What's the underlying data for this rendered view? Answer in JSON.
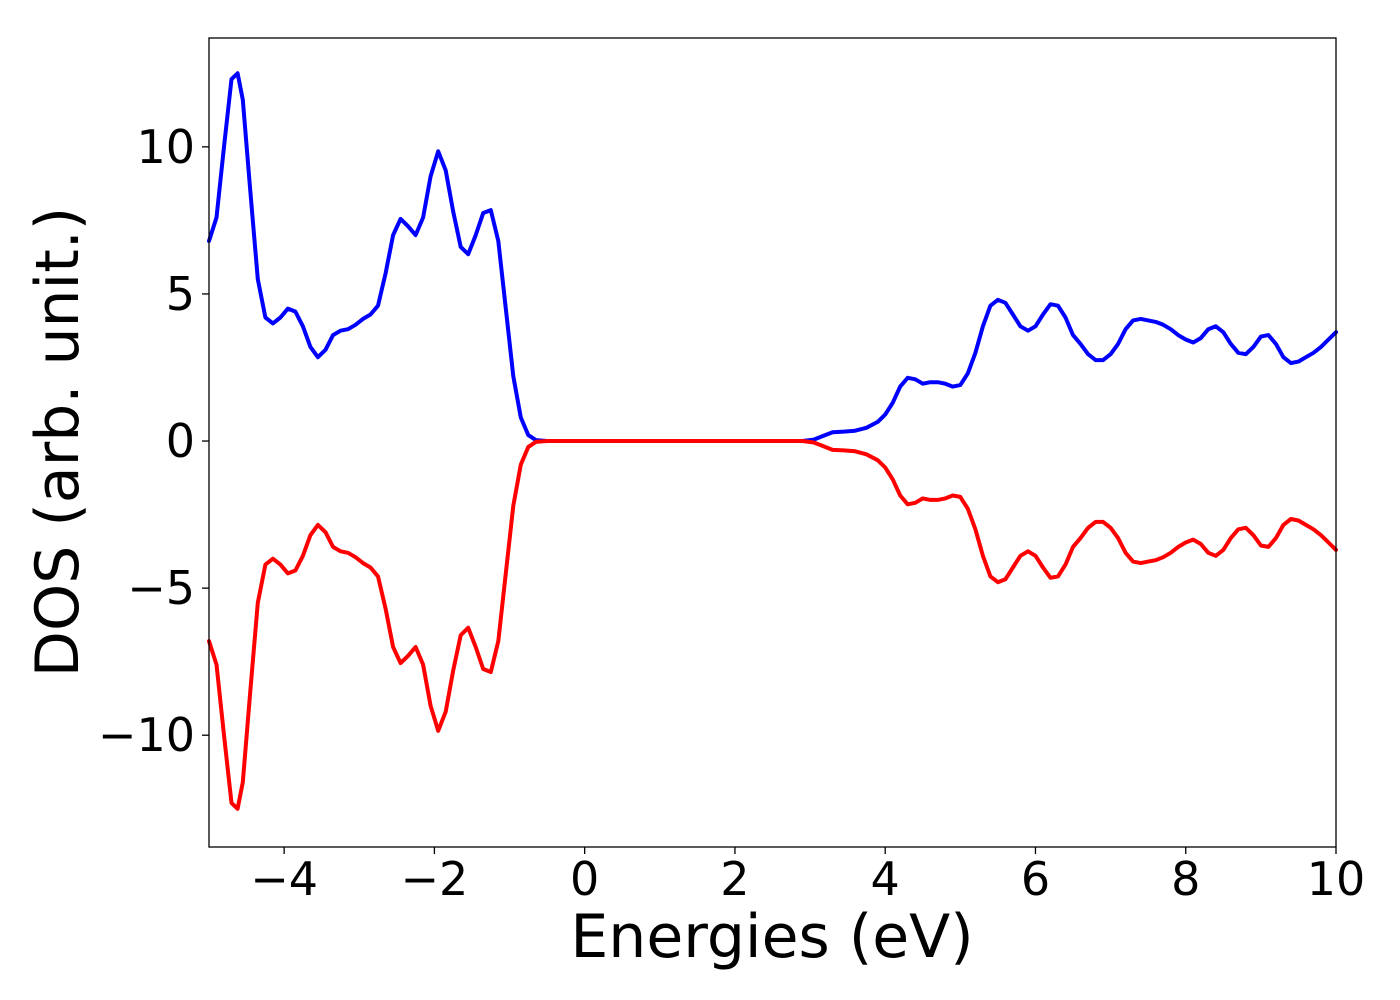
{
  "chart_data": {
    "type": "line",
    "title": "",
    "xlabel": "Energies (eV)",
    "ylabel": "DOS (arb. unit.)",
    "xlim": [
      -5,
      10
    ],
    "ylim": [
      -13.8,
      13.7
    ],
    "grid": false,
    "x_ticks": [
      -4,
      -2,
      0,
      2,
      4,
      6,
      8,
      10
    ],
    "x_tick_labels": [
      "−4",
      "−2",
      "0",
      "2",
      "4",
      "6",
      "8",
      "10"
    ],
    "y_ticks": [
      -10,
      -5,
      0,
      5,
      10
    ],
    "y_tick_labels": [
      "−10",
      "−5",
      "0",
      "5",
      "10"
    ],
    "series": [
      {
        "color": "#0000ff",
        "points": [
          [
            -5.0,
            6.8
          ],
          [
            -4.9,
            7.6
          ],
          [
            -4.8,
            10.0
          ],
          [
            -4.7,
            12.3
          ],
          [
            -4.62,
            12.5
          ],
          [
            -4.55,
            11.6
          ],
          [
            -4.45,
            8.5
          ],
          [
            -4.35,
            5.5
          ],
          [
            -4.25,
            4.2
          ],
          [
            -4.15,
            4.0
          ],
          [
            -4.05,
            4.2
          ],
          [
            -3.95,
            4.5
          ],
          [
            -3.85,
            4.4
          ],
          [
            -3.75,
            3.9
          ],
          [
            -3.65,
            3.2
          ],
          [
            -3.55,
            2.85
          ],
          [
            -3.45,
            3.1
          ],
          [
            -3.35,
            3.6
          ],
          [
            -3.25,
            3.75
          ],
          [
            -3.15,
            3.8
          ],
          [
            -3.05,
            3.95
          ],
          [
            -2.95,
            4.15
          ],
          [
            -2.85,
            4.3
          ],
          [
            -2.75,
            4.6
          ],
          [
            -2.65,
            5.7
          ],
          [
            -2.55,
            7.0
          ],
          [
            -2.45,
            7.55
          ],
          [
            -2.35,
            7.3
          ],
          [
            -2.25,
            7.0
          ],
          [
            -2.15,
            7.6
          ],
          [
            -2.05,
            9.0
          ],
          [
            -1.95,
            9.85
          ],
          [
            -1.85,
            9.2
          ],
          [
            -1.75,
            7.8
          ],
          [
            -1.65,
            6.6
          ],
          [
            -1.55,
            6.35
          ],
          [
            -1.45,
            7.0
          ],
          [
            -1.35,
            7.75
          ],
          [
            -1.25,
            7.85
          ],
          [
            -1.15,
            6.8
          ],
          [
            -1.05,
            4.5
          ],
          [
            -0.95,
            2.2
          ],
          [
            -0.85,
            0.8
          ],
          [
            -0.75,
            0.2
          ],
          [
            -0.65,
            0.03
          ],
          [
            -0.5,
            0.0
          ],
          [
            0.0,
            0.0
          ],
          [
            1.0,
            0.0
          ],
          [
            2.0,
            0.0
          ],
          [
            2.9,
            0.0
          ],
          [
            3.05,
            0.05
          ],
          [
            3.15,
            0.15
          ],
          [
            3.3,
            0.3
          ],
          [
            3.45,
            0.32
          ],
          [
            3.6,
            0.35
          ],
          [
            3.75,
            0.45
          ],
          [
            3.9,
            0.65
          ],
          [
            4.0,
            0.9
          ],
          [
            4.1,
            1.3
          ],
          [
            4.2,
            1.85
          ],
          [
            4.3,
            2.15
          ],
          [
            4.4,
            2.1
          ],
          [
            4.5,
            1.95
          ],
          [
            4.6,
            2.0
          ],
          [
            4.7,
            2.0
          ],
          [
            4.8,
            1.95
          ],
          [
            4.9,
            1.85
          ],
          [
            5.0,
            1.9
          ],
          [
            5.1,
            2.3
          ],
          [
            5.2,
            3.0
          ],
          [
            5.3,
            3.9
          ],
          [
            5.4,
            4.6
          ],
          [
            5.5,
            4.8
          ],
          [
            5.6,
            4.7
          ],
          [
            5.7,
            4.3
          ],
          [
            5.8,
            3.9
          ],
          [
            5.9,
            3.75
          ],
          [
            6.0,
            3.9
          ],
          [
            6.1,
            4.3
          ],
          [
            6.2,
            4.65
          ],
          [
            6.3,
            4.6
          ],
          [
            6.4,
            4.2
          ],
          [
            6.5,
            3.6
          ],
          [
            6.6,
            3.3
          ],
          [
            6.7,
            2.95
          ],
          [
            6.8,
            2.75
          ],
          [
            6.9,
            2.75
          ],
          [
            7.0,
            2.95
          ],
          [
            7.1,
            3.3
          ],
          [
            7.2,
            3.8
          ],
          [
            7.3,
            4.1
          ],
          [
            7.4,
            4.15
          ],
          [
            7.5,
            4.1
          ],
          [
            7.6,
            4.05
          ],
          [
            7.7,
            3.95
          ],
          [
            7.8,
            3.8
          ],
          [
            7.9,
            3.6
          ],
          [
            8.0,
            3.45
          ],
          [
            8.1,
            3.35
          ],
          [
            8.2,
            3.5
          ],
          [
            8.3,
            3.8
          ],
          [
            8.4,
            3.9
          ],
          [
            8.5,
            3.7
          ],
          [
            8.6,
            3.3
          ],
          [
            8.7,
            3.0
          ],
          [
            8.8,
            2.95
          ],
          [
            8.9,
            3.2
          ],
          [
            9.0,
            3.55
          ],
          [
            9.1,
            3.6
          ],
          [
            9.2,
            3.3
          ],
          [
            9.3,
            2.85
          ],
          [
            9.4,
            2.65
          ],
          [
            9.5,
            2.7
          ],
          [
            9.6,
            2.85
          ],
          [
            9.7,
            3.0
          ],
          [
            9.8,
            3.2
          ],
          [
            9.9,
            3.45
          ],
          [
            10.0,
            3.7
          ]
        ]
      },
      {
        "color": "#ff0000",
        "points": [
          [
            -5.0,
            -6.8
          ],
          [
            -4.9,
            -7.6
          ],
          [
            -4.8,
            -10.0
          ],
          [
            -4.7,
            -12.3
          ],
          [
            -4.62,
            -12.5
          ],
          [
            -4.55,
            -11.6
          ],
          [
            -4.45,
            -8.5
          ],
          [
            -4.35,
            -5.5
          ],
          [
            -4.25,
            -4.2
          ],
          [
            -4.15,
            -4.0
          ],
          [
            -4.05,
            -4.2
          ],
          [
            -3.95,
            -4.5
          ],
          [
            -3.85,
            -4.4
          ],
          [
            -3.75,
            -3.9
          ],
          [
            -3.65,
            -3.2
          ],
          [
            -3.55,
            -2.85
          ],
          [
            -3.45,
            -3.1
          ],
          [
            -3.35,
            -3.6
          ],
          [
            -3.25,
            -3.75
          ],
          [
            -3.15,
            -3.8
          ],
          [
            -3.05,
            -3.95
          ],
          [
            -2.95,
            -4.15
          ],
          [
            -2.85,
            -4.3
          ],
          [
            -2.75,
            -4.6
          ],
          [
            -2.65,
            -5.7
          ],
          [
            -2.55,
            -7.0
          ],
          [
            -2.45,
            -7.55
          ],
          [
            -2.35,
            -7.3
          ],
          [
            -2.25,
            -7.0
          ],
          [
            -2.15,
            -7.6
          ],
          [
            -2.05,
            -9.0
          ],
          [
            -1.95,
            -9.85
          ],
          [
            -1.85,
            -9.2
          ],
          [
            -1.75,
            -7.8
          ],
          [
            -1.65,
            -6.6
          ],
          [
            -1.55,
            -6.35
          ],
          [
            -1.45,
            -7.0
          ],
          [
            -1.35,
            -7.75
          ],
          [
            -1.25,
            -7.85
          ],
          [
            -1.15,
            -6.8
          ],
          [
            -1.05,
            -4.5
          ],
          [
            -0.95,
            -2.2
          ],
          [
            -0.85,
            -0.8
          ],
          [
            -0.75,
            -0.2
          ],
          [
            -0.65,
            -0.03
          ],
          [
            -0.5,
            0.0
          ],
          [
            0.0,
            0.0
          ],
          [
            1.0,
            0.0
          ],
          [
            2.0,
            0.0
          ],
          [
            2.9,
            0.0
          ],
          [
            3.05,
            -0.05
          ],
          [
            3.15,
            -0.15
          ],
          [
            3.3,
            -0.3
          ],
          [
            3.45,
            -0.32
          ],
          [
            3.6,
            -0.35
          ],
          [
            3.75,
            -0.45
          ],
          [
            3.9,
            -0.65
          ],
          [
            4.0,
            -0.9
          ],
          [
            4.1,
            -1.3
          ],
          [
            4.2,
            -1.85
          ],
          [
            4.3,
            -2.15
          ],
          [
            4.4,
            -2.1
          ],
          [
            4.5,
            -1.95
          ],
          [
            4.6,
            -2.0
          ],
          [
            4.7,
            -2.0
          ],
          [
            4.8,
            -1.95
          ],
          [
            4.9,
            -1.85
          ],
          [
            5.0,
            -1.9
          ],
          [
            5.1,
            -2.3
          ],
          [
            5.2,
            -3.0
          ],
          [
            5.3,
            -3.9
          ],
          [
            5.4,
            -4.6
          ],
          [
            5.5,
            -4.8
          ],
          [
            5.6,
            -4.7
          ],
          [
            5.7,
            -4.3
          ],
          [
            5.8,
            -3.9
          ],
          [
            5.9,
            -3.75
          ],
          [
            6.0,
            -3.9
          ],
          [
            6.1,
            -4.3
          ],
          [
            6.2,
            -4.65
          ],
          [
            6.3,
            -4.6
          ],
          [
            6.4,
            -4.2
          ],
          [
            6.5,
            -3.6
          ],
          [
            6.6,
            -3.3
          ],
          [
            6.7,
            -2.95
          ],
          [
            6.8,
            -2.75
          ],
          [
            6.9,
            -2.75
          ],
          [
            7.0,
            -2.95
          ],
          [
            7.1,
            -3.3
          ],
          [
            7.2,
            -3.8
          ],
          [
            7.3,
            -4.1
          ],
          [
            7.4,
            -4.15
          ],
          [
            7.5,
            -4.1
          ],
          [
            7.6,
            -4.05
          ],
          [
            7.7,
            -3.95
          ],
          [
            7.8,
            -3.8
          ],
          [
            7.9,
            -3.6
          ],
          [
            8.0,
            -3.45
          ],
          [
            8.1,
            -3.35
          ],
          [
            8.2,
            -3.5
          ],
          [
            8.3,
            -3.8
          ],
          [
            8.4,
            -3.9
          ],
          [
            8.5,
            -3.7
          ],
          [
            8.6,
            -3.3
          ],
          [
            8.7,
            -3.0
          ],
          [
            8.8,
            -2.95
          ],
          [
            8.9,
            -3.2
          ],
          [
            9.0,
            -3.55
          ],
          [
            9.1,
            -3.6
          ],
          [
            9.2,
            -3.3
          ],
          [
            9.3,
            -2.85
          ],
          [
            9.4,
            -2.65
          ],
          [
            9.5,
            -2.7
          ],
          [
            9.6,
            -2.85
          ],
          [
            9.7,
            -3.0
          ],
          [
            9.8,
            -3.2
          ],
          [
            9.9,
            -3.45
          ],
          [
            10.0,
            -3.7
          ]
        ]
      }
    ]
  }
}
